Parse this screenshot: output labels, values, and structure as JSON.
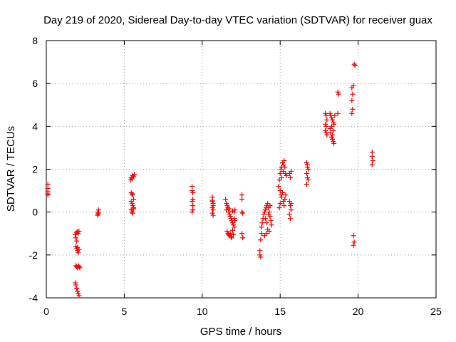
{
  "chart_data": {
    "type": "scatter",
    "title": "Day 219 of 2020, Sidereal Day-to-day VTEC variation (SDTVAR) for receiver guax",
    "xlabel": "GPS time / hours",
    "ylabel": "SDTVAR / TECUs",
    "xlim": [
      0,
      25
    ],
    "ylim": [
      -4,
      8
    ],
    "xticks": [
      0,
      5,
      10,
      15,
      20,
      25
    ],
    "yticks": [
      -4,
      -2,
      0,
      2,
      4,
      6,
      8
    ],
    "grid": true,
    "marker": "+",
    "color": "#ff0000",
    "series": [
      {
        "name": "SDTVAR",
        "points": [
          [
            0.1,
            1.3
          ],
          [
            0.1,
            1.1
          ],
          [
            0.1,
            0.95
          ],
          [
            0.1,
            0.85
          ],
          [
            0.1,
            0.8
          ],
          [
            1.85,
            -1.05
          ],
          [
            1.9,
            -1.2
          ],
          [
            1.95,
            -0.95
          ],
          [
            2.0,
            -0.9
          ],
          [
            2.05,
            -1.0
          ],
          [
            2.1,
            -0.9
          ],
          [
            1.95,
            -1.35
          ],
          [
            1.9,
            -1.6
          ],
          [
            1.95,
            -1.7
          ],
          [
            2.0,
            -1.8
          ],
          [
            2.05,
            -1.9
          ],
          [
            2.1,
            -1.75
          ],
          [
            2.0,
            -1.65
          ],
          [
            1.9,
            -2.5
          ],
          [
            1.95,
            -2.55
          ],
          [
            2.0,
            -2.6
          ],
          [
            2.05,
            -2.5
          ],
          [
            2.1,
            -2.55
          ],
          [
            2.15,
            -2.6
          ],
          [
            1.85,
            -3.3
          ],
          [
            1.9,
            -3.4
          ],
          [
            1.95,
            -3.55
          ],
          [
            2.0,
            -3.7
          ],
          [
            2.05,
            -3.8
          ],
          [
            2.1,
            -3.9
          ],
          [
            3.3,
            0.0
          ],
          [
            3.3,
            -0.1
          ],
          [
            3.3,
            -0.15
          ],
          [
            3.35,
            -0.05
          ],
          [
            3.35,
            0.1
          ],
          [
            5.4,
            1.5
          ],
          [
            5.45,
            1.6
          ],
          [
            5.5,
            1.55
          ],
          [
            5.55,
            1.7
          ],
          [
            5.6,
            1.65
          ],
          [
            5.65,
            1.75
          ],
          [
            5.45,
            0.9
          ],
          [
            5.5,
            0.8
          ],
          [
            5.55,
            0.85
          ],
          [
            5.6,
            0.6
          ],
          [
            5.45,
            0.5
          ],
          [
            5.5,
            0.4
          ],
          [
            5.55,
            0.3
          ],
          [
            5.6,
            0.2
          ],
          [
            5.45,
            0.1
          ],
          [
            5.5,
            0.0
          ],
          [
            5.55,
            -0.05
          ],
          [
            5.6,
            0.15
          ],
          [
            9.35,
            1.2
          ],
          [
            9.35,
            1.0
          ],
          [
            9.4,
            0.9
          ],
          [
            9.4,
            0.6
          ],
          [
            9.35,
            0.5
          ],
          [
            9.4,
            0.3
          ],
          [
            9.4,
            0.1
          ],
          [
            9.35,
            0.0
          ],
          [
            10.65,
            0.7
          ],
          [
            10.65,
            0.5
          ],
          [
            10.7,
            0.4
          ],
          [
            10.7,
            0.3
          ],
          [
            10.65,
            0.2
          ],
          [
            10.7,
            0.1
          ],
          [
            10.65,
            -0.05
          ],
          [
            10.7,
            -0.15
          ],
          [
            10.65,
            0.55
          ],
          [
            11.5,
            0.6
          ],
          [
            11.55,
            0.4
          ],
          [
            11.6,
            0.3
          ],
          [
            11.65,
            0.2
          ],
          [
            11.7,
            0.0
          ],
          [
            11.75,
            -0.1
          ],
          [
            11.8,
            -0.2
          ],
          [
            11.85,
            -0.3
          ],
          [
            11.9,
            -0.4
          ],
          [
            11.95,
            -0.5
          ],
          [
            12.0,
            -0.6
          ],
          [
            12.05,
            -0.7
          ],
          [
            11.6,
            -0.9
          ],
          [
            11.65,
            -1.0
          ],
          [
            11.7,
            -1.05
          ],
          [
            11.75,
            -1.1
          ],
          [
            11.8,
            -1.0
          ],
          [
            11.85,
            -1.15
          ],
          [
            11.9,
            -1.2
          ],
          [
            11.95,
            -0.85
          ],
          [
            12.0,
            -1.05
          ],
          [
            12.05,
            -0.3
          ],
          [
            12.1,
            0.1
          ],
          [
            12.1,
            -0.4
          ],
          [
            11.55,
            0.1
          ],
          [
            11.75,
            0.15
          ],
          [
            11.95,
            0.05
          ],
          [
            12.05,
            0.0
          ],
          [
            12.55,
            0.8
          ],
          [
            12.55,
            0.6
          ],
          [
            12.55,
            0.0
          ],
          [
            12.6,
            -0.05
          ],
          [
            12.55,
            -1.0
          ],
          [
            12.6,
            -1.2
          ],
          [
            13.7,
            -1.8
          ],
          [
            13.7,
            -2.0
          ],
          [
            13.75,
            -2.1
          ],
          [
            13.75,
            -1.3
          ],
          [
            13.8,
            -1.0
          ],
          [
            13.8,
            -0.7
          ],
          [
            13.85,
            -0.5
          ],
          [
            13.9,
            -0.3
          ],
          [
            13.95,
            -0.1
          ],
          [
            14.0,
            0.0
          ],
          [
            14.05,
            0.1
          ],
          [
            14.1,
            0.2
          ],
          [
            14.15,
            0.3
          ],
          [
            14.2,
            0.4
          ],
          [
            14.25,
            0.2
          ],
          [
            14.3,
            0.0
          ],
          [
            14.35,
            -0.2
          ],
          [
            14.4,
            -0.4
          ],
          [
            14.45,
            -0.6
          ],
          [
            14.2,
            -0.8
          ],
          [
            14.1,
            -1.0
          ],
          [
            14.0,
            -1.1
          ],
          [
            14.3,
            -0.9
          ],
          [
            14.15,
            -0.5
          ],
          [
            14.05,
            -0.3
          ],
          [
            14.35,
            0.3
          ],
          [
            14.25,
            -0.1
          ],
          [
            14.9,
            1.2
          ],
          [
            14.95,
            1.5
          ],
          [
            15.0,
            1.8
          ],
          [
            15.05,
            2.0
          ],
          [
            15.1,
            2.1
          ],
          [
            15.15,
            2.3
          ],
          [
            15.2,
            2.2
          ],
          [
            15.25,
            2.4
          ],
          [
            15.3,
            2.1
          ],
          [
            15.35,
            1.8
          ],
          [
            15.4,
            1.7
          ],
          [
            15.0,
            1.0
          ],
          [
            15.05,
            0.8
          ],
          [
            15.1,
            0.7
          ],
          [
            15.15,
            0.9
          ],
          [
            15.2,
            0.5
          ],
          [
            15.25,
            0.3
          ],
          [
            15.3,
            0.6
          ],
          [
            15.35,
            0.8
          ],
          [
            15.0,
            0.4
          ],
          [
            14.95,
            0.2
          ],
          [
            15.1,
            1.6
          ],
          [
            15.2,
            1.9
          ],
          [
            15.6,
            1.8
          ],
          [
            15.65,
            1.6
          ],
          [
            15.7,
            1.9
          ],
          [
            15.6,
            0.5
          ],
          [
            15.65,
            0.3
          ],
          [
            15.7,
            0.1
          ],
          [
            15.6,
            -0.1
          ],
          [
            15.65,
            -0.3
          ],
          [
            15.7,
            0.4
          ],
          [
            16.7,
            2.3
          ],
          [
            16.75,
            2.1
          ],
          [
            16.8,
            2.0
          ],
          [
            16.7,
            1.8
          ],
          [
            16.75,
            1.6
          ],
          [
            16.8,
            1.5
          ],
          [
            16.7,
            1.3
          ],
          [
            16.75,
            2.2
          ],
          [
            17.9,
            4.6
          ],
          [
            17.95,
            4.5
          ],
          [
            17.9,
            4.1
          ],
          [
            17.95,
            4.0
          ],
          [
            17.9,
            3.8
          ],
          [
            17.95,
            3.7
          ],
          [
            18.0,
            3.6
          ],
          [
            18.0,
            4.3
          ],
          [
            18.2,
            4.6
          ],
          [
            18.25,
            4.5
          ],
          [
            18.3,
            4.4
          ],
          [
            18.35,
            4.3
          ],
          [
            18.4,
            4.2
          ],
          [
            18.45,
            4.1
          ],
          [
            18.2,
            3.9
          ],
          [
            18.25,
            3.7
          ],
          [
            18.3,
            3.5
          ],
          [
            18.35,
            3.4
          ],
          [
            18.4,
            3.3
          ],
          [
            18.45,
            3.2
          ],
          [
            18.3,
            4.0
          ],
          [
            18.4,
            3.8
          ],
          [
            18.5,
            4.5
          ],
          [
            18.35,
            3.6
          ],
          [
            18.7,
            5.6
          ],
          [
            18.75,
            5.5
          ],
          [
            18.7,
            4.6
          ],
          [
            19.6,
            5.8
          ],
          [
            19.65,
            5.5
          ],
          [
            19.6,
            5.2
          ],
          [
            19.65,
            4.8
          ],
          [
            19.6,
            4.6
          ],
          [
            19.7,
            5.9
          ],
          [
            19.75,
            6.9
          ],
          [
            19.8,
            6.85
          ],
          [
            19.7,
            -1.1
          ],
          [
            19.75,
            -1.4
          ],
          [
            19.7,
            -1.55
          ],
          [
            20.9,
            2.8
          ],
          [
            20.9,
            2.6
          ],
          [
            20.95,
            2.4
          ],
          [
            20.9,
            2.2
          ]
        ]
      }
    ]
  }
}
